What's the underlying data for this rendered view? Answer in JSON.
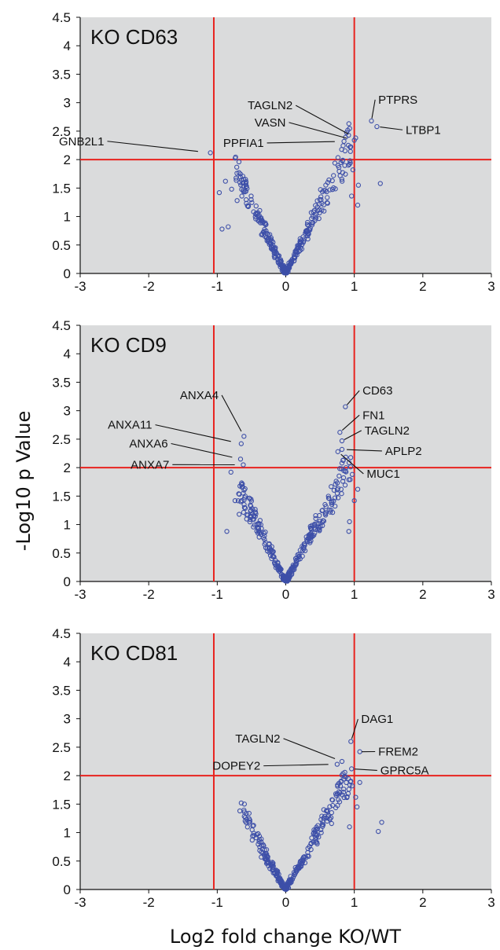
{
  "figure": {
    "ylabel": "-Log10 p Value",
    "xlabel": "Log2 fold change KO/WT",
    "colors": {
      "panel_bg": "#dadbdc",
      "threshold": "#e8231f",
      "marker": "#3d4fa8",
      "text": "#111111"
    }
  },
  "chart_data": [
    {
      "type": "scatter",
      "title": "KO CD63",
      "xlim": [
        -3,
        3
      ],
      "ylim": [
        0,
        4.5
      ],
      "xticks": [
        "-3",
        "-2",
        "-1",
        "0",
        "1",
        "2",
        "3"
      ],
      "yticks": [
        "0",
        "0.5",
        "1",
        "1.5",
        "2",
        "2.5",
        "3",
        "3.5",
        "4",
        "4.5"
      ],
      "thresholds": {
        "x": [
          -1.05,
          1
        ],
        "y": 2
      },
      "annotations": [
        {
          "label": "GNB2L1",
          "x": -1.1,
          "y": 2.12,
          "lx": -2.65,
          "ly": 2.35
        },
        {
          "label": "TAGLN2",
          "x": 1.02,
          "y": 2.38,
          "lx": 0.1,
          "ly": 2.98
        },
        {
          "label": "VASN",
          "x": 1.0,
          "y": 2.34,
          "lx": 0.0,
          "ly": 2.68
        },
        {
          "label": "PPFIA1",
          "x": 0.85,
          "y": 2.32,
          "lx": -0.32,
          "ly": 2.32
        },
        {
          "label": "PTPRS",
          "x": 1.25,
          "y": 2.68,
          "lx": 1.35,
          "ly": 3.08
        },
        {
          "label": "LTBP1",
          "x": 1.33,
          "y": 2.58,
          "lx": 1.75,
          "ly": 2.55
        }
      ],
      "outliers": [
        {
          "x": -0.97,
          "y": 1.42
        },
        {
          "x": -0.88,
          "y": 1.62
        },
        {
          "x": -0.79,
          "y": 1.48
        },
        {
          "x": -0.93,
          "y": 0.78
        },
        {
          "x": -0.84,
          "y": 0.82
        },
        {
          "x": -0.71,
          "y": 1.28
        },
        {
          "x": 0.93,
          "y": 1.92
        },
        {
          "x": 0.96,
          "y": 1.36
        },
        {
          "x": 0.98,
          "y": 1.82
        },
        {
          "x": 1.06,
          "y": 1.55
        },
        {
          "x": 1.38,
          "y": 1.58
        },
        {
          "x": 1.05,
          "y": 1.2
        }
      ],
      "cloud": {
        "left_slope": 2.6,
        "right_slope": 2.55,
        "left_extent": 0.75,
        "right_extent": 0.95,
        "n": 330,
        "seed": 11
      }
    },
    {
      "type": "scatter",
      "title": "KO CD9",
      "xlim": [
        -3,
        3
      ],
      "ylim": [
        0,
        4.5
      ],
      "xticks": [
        "-3",
        "-2",
        "-1",
        "0",
        "1",
        "2",
        "3"
      ],
      "yticks": [
        "0",
        "0.5",
        "1",
        "1.5",
        "2",
        "2.5",
        "3",
        "3.5",
        "4",
        "4.5"
      ],
      "thresholds": {
        "x": [
          -1.05,
          1
        ],
        "y": 2
      },
      "annotations": [
        {
          "label": "ANXA4",
          "x": -0.61,
          "y": 2.55,
          "lx": -0.98,
          "ly": 3.3
        },
        {
          "label": "ANXA11",
          "x": -0.65,
          "y": 2.42,
          "lx": -1.95,
          "ly": 2.78
        },
        {
          "label": "ANXA6",
          "x": -0.66,
          "y": 2.15,
          "lx": -1.72,
          "ly": 2.45
        },
        {
          "label": "ANXA7",
          "x": -0.62,
          "y": 2.05,
          "lx": -1.7,
          "ly": 2.08
        },
        {
          "label": "CD63",
          "x": 0.87,
          "y": 3.07,
          "lx": 1.12,
          "ly": 3.38
        },
        {
          "label": "FN1",
          "x": 0.79,
          "y": 2.62,
          "lx": 1.12,
          "ly": 2.95
        },
        {
          "label": "TAGLN2",
          "x": 0.82,
          "y": 2.47,
          "lx": 1.15,
          "ly": 2.68
        },
        {
          "label": "APLP2",
          "x": 0.82,
          "y": 2.32,
          "lx": 1.45,
          "ly": 2.32
        },
        {
          "label": "MUC1",
          "x": 0.76,
          "y": 2.28,
          "lx": 1.18,
          "ly": 1.92
        }
      ],
      "outliers": [
        {
          "x": -0.8,
          "y": 1.92
        },
        {
          "x": -0.74,
          "y": 1.42
        },
        {
          "x": -0.86,
          "y": 0.88
        },
        {
          "x": -0.68,
          "y": 1.18
        },
        {
          "x": 0.97,
          "y": 1.88
        },
        {
          "x": 1.0,
          "y": 1.42
        },
        {
          "x": 0.93,
          "y": 1.05
        },
        {
          "x": 1.05,
          "y": 1.62
        },
        {
          "x": 0.88,
          "y": 2.0
        },
        {
          "x": 0.92,
          "y": 0.88
        }
      ],
      "cloud": {
        "left_slope": 2.55,
        "right_slope": 2.35,
        "left_extent": 0.7,
        "right_extent": 0.95,
        "n": 330,
        "seed": 23
      }
    },
    {
      "type": "scatter",
      "title": "KO CD81",
      "xlim": [
        -3,
        3
      ],
      "ylim": [
        0,
        4.5
      ],
      "xticks": [
        "-3",
        "-2",
        "-1",
        "0",
        "1",
        "2",
        "3"
      ],
      "yticks": [
        "0",
        "0.5",
        "1",
        "1.5",
        "2",
        "2.5",
        "3",
        "3.5",
        "4",
        "4.5"
      ],
      "thresholds": {
        "x": [
          -1.05,
          1
        ],
        "y": 2
      },
      "annotations": [
        {
          "label": "DAG1",
          "x": 0.95,
          "y": 2.6,
          "lx": 1.1,
          "ly": 3.02
        },
        {
          "label": "FREM2",
          "x": 1.08,
          "y": 2.42,
          "lx": 1.35,
          "ly": 2.45
        },
        {
          "label": "TAGLN2",
          "x": 0.82,
          "y": 2.25,
          "lx": -0.08,
          "ly": 2.68
        },
        {
          "label": "DOPEY2",
          "x": 0.75,
          "y": 2.2,
          "lx": -0.37,
          "ly": 2.2
        },
        {
          "label": "GPRC5A",
          "x": 0.96,
          "y": 2.12,
          "lx": 1.38,
          "ly": 2.12
        }
      ],
      "outliers": [
        {
          "x": -0.65,
          "y": 1.52
        },
        {
          "x": -0.67,
          "y": 1.38
        },
        {
          "x": 1.35,
          "y": 1.02
        },
        {
          "x": 1.4,
          "y": 1.18
        },
        {
          "x": 1.02,
          "y": 1.62
        },
        {
          "x": 0.97,
          "y": 1.82
        },
        {
          "x": 1.08,
          "y": 1.88
        },
        {
          "x": 1.04,
          "y": 1.45
        },
        {
          "x": 0.93,
          "y": 1.1
        }
      ],
      "cloud": {
        "left_slope": 2.2,
        "right_slope": 2.25,
        "left_extent": 0.62,
        "right_extent": 0.95,
        "n": 300,
        "seed": 37
      }
    }
  ]
}
